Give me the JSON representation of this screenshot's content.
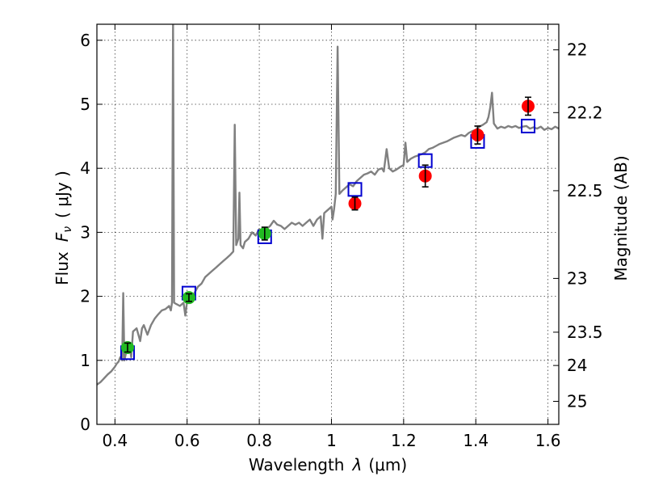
{
  "chart_data": {
    "type": "scatter",
    "xlabel_text": "Wavelength",
    "xlabel_symbol": "λ",
    "xlabel_unit": "(μm)",
    "ylabel_text": "Flux",
    "ylabel_symbol": "F",
    "ylabel_symbol_sub": "ν",
    "ylabel_unit": "( μJy )",
    "ylabel_right": "Magnitude (AB)",
    "xlim": [
      0.35,
      1.63
    ],
    "ylim": [
      0,
      6.25
    ],
    "x_ticks": [
      0.4,
      0.6,
      0.8,
      1.0,
      1.2,
      1.4,
      1.6
    ],
    "x_tick_labels": [
      "0.4",
      "0.6",
      "0.8",
      "1",
      "1.2",
      "1.4",
      "1.6"
    ],
    "y_ticks": [
      0,
      1,
      2,
      3,
      4,
      5,
      6
    ],
    "y_tick_labels": [
      "0",
      "1",
      "2",
      "3",
      "4",
      "5",
      "6"
    ],
    "right_axis_labels": [
      {
        "label": "22",
        "flux": 5.85
      },
      {
        "label": "22.2",
        "flux": 4.87
      },
      {
        "label": "22.5",
        "flux": 3.65
      },
      {
        "label": "23",
        "flux": 2.28
      },
      {
        "label": "23.5",
        "flux": 1.44
      },
      {
        "label": "24",
        "flux": 0.92
      },
      {
        "label": "25",
        "flux": 0.36
      }
    ],
    "grid": true,
    "colors": {
      "spectrum": "#808080",
      "optical_points": "#22bb22",
      "nir_points": "#ff0000",
      "model_boxes": "#0000d0",
      "error_bars": "#000000"
    },
    "spectrum": [
      [
        0.35,
        0.62
      ],
      [
        0.36,
        0.66
      ],
      [
        0.37,
        0.72
      ],
      [
        0.38,
        0.78
      ],
      [
        0.39,
        0.83
      ],
      [
        0.4,
        0.9
      ],
      [
        0.405,
        0.95
      ],
      [
        0.41,
        0.98
      ],
      [
        0.415,
        1.05
      ],
      [
        0.42,
        1.0
      ],
      [
        0.423,
        2.05
      ],
      [
        0.426,
        1.0
      ],
      [
        0.43,
        1.1
      ],
      [
        0.435,
        1.18
      ],
      [
        0.44,
        1.25
      ],
      [
        0.445,
        1.05
      ],
      [
        0.45,
        1.45
      ],
      [
        0.46,
        1.5
      ],
      [
        0.47,
        1.3
      ],
      [
        0.475,
        1.5
      ],
      [
        0.48,
        1.55
      ],
      [
        0.49,
        1.4
      ],
      [
        0.5,
        1.55
      ],
      [
        0.51,
        1.65
      ],
      [
        0.52,
        1.72
      ],
      [
        0.53,
        1.78
      ],
      [
        0.54,
        1.8
      ],
      [
        0.55,
        1.85
      ],
      [
        0.555,
        1.78
      ],
      [
        0.558,
        1.9
      ],
      [
        0.561,
        6.3
      ],
      [
        0.564,
        1.9
      ],
      [
        0.57,
        1.88
      ],
      [
        0.58,
        1.85
      ],
      [
        0.59,
        1.9
      ],
      [
        0.595,
        1.7
      ],
      [
        0.6,
        1.92
      ],
      [
        0.61,
        1.98
      ],
      [
        0.62,
        2.05
      ],
      [
        0.63,
        2.15
      ],
      [
        0.64,
        2.2
      ],
      [
        0.65,
        2.3
      ],
      [
        0.66,
        2.35
      ],
      [
        0.67,
        2.4
      ],
      [
        0.68,
        2.45
      ],
      [
        0.69,
        2.5
      ],
      [
        0.7,
        2.55
      ],
      [
        0.71,
        2.6
      ],
      [
        0.72,
        2.65
      ],
      [
        0.728,
        2.7
      ],
      [
        0.732,
        4.68
      ],
      [
        0.736,
        2.8
      ],
      [
        0.742,
        2.9
      ],
      [
        0.745,
        3.62
      ],
      [
        0.748,
        2.8
      ],
      [
        0.755,
        2.75
      ],
      [
        0.76,
        2.85
      ],
      [
        0.77,
        2.9
      ],
      [
        0.78,
        3.0
      ],
      [
        0.79,
        2.95
      ],
      [
        0.8,
        3.05
      ],
      [
        0.81,
        3.0
      ],
      [
        0.82,
        3.05
      ],
      [
        0.83,
        3.1
      ],
      [
        0.84,
        3.18
      ],
      [
        0.85,
        3.12
      ],
      [
        0.86,
        3.1
      ],
      [
        0.87,
        3.05
      ],
      [
        0.88,
        3.1
      ],
      [
        0.89,
        3.15
      ],
      [
        0.9,
        3.12
      ],
      [
        0.91,
        3.15
      ],
      [
        0.92,
        3.1
      ],
      [
        0.93,
        3.15
      ],
      [
        0.94,
        3.2
      ],
      [
        0.95,
        3.1
      ],
      [
        0.96,
        3.2
      ],
      [
        0.97,
        3.25
      ],
      [
        0.975,
        2.9
      ],
      [
        0.98,
        3.3
      ],
      [
        0.99,
        3.35
      ],
      [
        1.0,
        3.4
      ],
      [
        1.003,
        3.2
      ],
      [
        1.007,
        3.35
      ],
      [
        1.012,
        3.6
      ],
      [
        1.017,
        5.9
      ],
      [
        1.022,
        3.6
      ],
      [
        1.03,
        3.65
      ],
      [
        1.04,
        3.7
      ],
      [
        1.05,
        3.75
      ],
      [
        1.06,
        3.72
      ],
      [
        1.07,
        3.8
      ],
      [
        1.08,
        3.85
      ],
      [
        1.09,
        3.9
      ],
      [
        1.1,
        3.92
      ],
      [
        1.11,
        3.95
      ],
      [
        1.12,
        3.9
      ],
      [
        1.13,
        3.98
      ],
      [
        1.14,
        4.0
      ],
      [
        1.145,
        3.95
      ],
      [
        1.153,
        4.3
      ],
      [
        1.16,
        4.0
      ],
      [
        1.17,
        3.95
      ],
      [
        1.18,
        3.98
      ],
      [
        1.19,
        4.02
      ],
      [
        1.2,
        4.05
      ],
      [
        1.205,
        4.4
      ],
      [
        1.21,
        4.1
      ],
      [
        1.22,
        4.15
      ],
      [
        1.23,
        4.18
      ],
      [
        1.24,
        4.2
      ],
      [
        1.25,
        4.22
      ],
      [
        1.26,
        4.25
      ],
      [
        1.27,
        4.3
      ],
      [
        1.28,
        4.32
      ],
      [
        1.29,
        4.35
      ],
      [
        1.3,
        4.38
      ],
      [
        1.31,
        4.4
      ],
      [
        1.32,
        4.42
      ],
      [
        1.33,
        4.45
      ],
      [
        1.34,
        4.48
      ],
      [
        1.35,
        4.5
      ],
      [
        1.36,
        4.52
      ],
      [
        1.37,
        4.5
      ],
      [
        1.38,
        4.55
      ],
      [
        1.39,
        4.58
      ],
      [
        1.4,
        4.6
      ],
      [
        1.41,
        4.65
      ],
      [
        1.42,
        4.68
      ],
      [
        1.43,
        4.72
      ],
      [
        1.435,
        4.8
      ],
      [
        1.44,
        4.95
      ],
      [
        1.445,
        5.18
      ],
      [
        1.45,
        4.7
      ],
      [
        1.46,
        4.62
      ],
      [
        1.47,
        4.65
      ],
      [
        1.48,
        4.63
      ],
      [
        1.49,
        4.66
      ],
      [
        1.5,
        4.64
      ],
      [
        1.51,
        4.66
      ],
      [
        1.52,
        4.63
      ],
      [
        1.53,
        4.65
      ],
      [
        1.54,
        4.66
      ],
      [
        1.55,
        4.62
      ],
      [
        1.56,
        4.64
      ],
      [
        1.57,
        4.62
      ],
      [
        1.58,
        4.65
      ],
      [
        1.59,
        4.6
      ],
      [
        1.6,
        4.63
      ],
      [
        1.61,
        4.61
      ],
      [
        1.62,
        4.65
      ],
      [
        1.63,
        4.62
      ]
    ],
    "series": [
      {
        "points": [
          {
            "x": 0.435,
            "y": 1.2,
            "err": 0.07
          },
          {
            "x": 0.605,
            "y": 1.98,
            "err": 0.06
          },
          {
            "x": 0.815,
            "y": 2.98,
            "err": 0.1
          }
        ]
      },
      {
        "points": [
          {
            "x": 1.065,
            "y": 3.45,
            "err": 0.1
          },
          {
            "x": 1.26,
            "y": 3.88,
            "err": 0.17
          },
          {
            "x": 1.405,
            "y": 4.52,
            "err": 0.14
          },
          {
            "x": 1.545,
            "y": 4.97,
            "err": 0.14
          }
        ]
      }
    ],
    "model_points": [
      {
        "x": 0.435,
        "y": 1.12
      },
      {
        "x": 0.605,
        "y": 2.05
      },
      {
        "x": 0.815,
        "y": 2.93
      },
      {
        "x": 1.065,
        "y": 3.67
      },
      {
        "x": 1.26,
        "y": 4.12
      },
      {
        "x": 1.405,
        "y": 4.42
      },
      {
        "x": 1.545,
        "y": 4.66
      }
    ]
  }
}
